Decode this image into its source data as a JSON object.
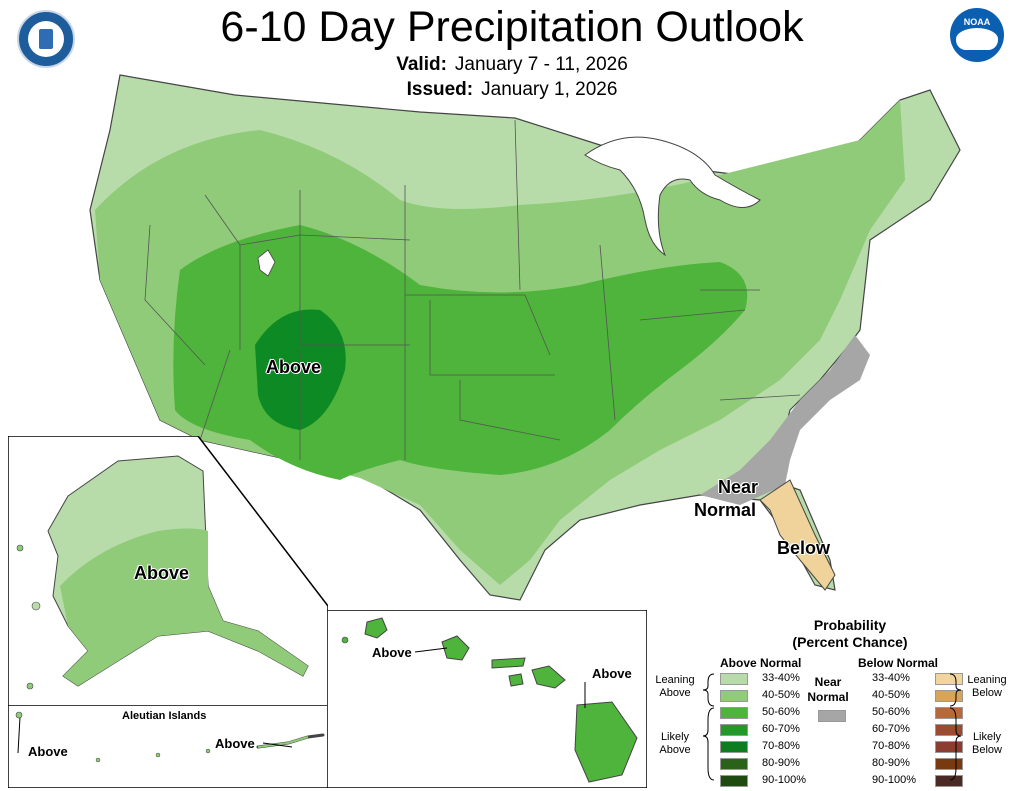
{
  "header": {
    "title": "6-10 Day Precipitation Outlook",
    "valid_label": "Valid:",
    "valid_value": "January 7 - 11, 2026",
    "issued_label": "Issued:",
    "issued_value": "January 1, 2026"
  },
  "map_labels": {
    "conus_above": "Above",
    "near_normal_1": "Near",
    "near_normal_2": "Normal",
    "conus_below": "Below",
    "alaska_above": "Above",
    "aleutian_title": "Aleutian Islands",
    "aleutian_above_west": "Above",
    "aleutian_above_east": "Above",
    "hawaii_above_west": "Above",
    "hawaii_above_east": "Above"
  },
  "legend": {
    "title_1": "Probability",
    "title_2": "(Percent Chance)",
    "above_header": "Above Normal",
    "below_header": "Below Normal",
    "near_1": "Near",
    "near_2": "Normal",
    "near_color": "#a6a6a6",
    "leaning_above": "Leaning Above",
    "likely_above": "Likely Above",
    "leaning_below": "Leaning Below",
    "likely_below": "Likely Below",
    "above": [
      {
        "label": "33-40%",
        "color": "#b7dcaa"
      },
      {
        "label": "40-50%",
        "color": "#8fcb78"
      },
      {
        "label": "50-60%",
        "color": "#4fb43b"
      },
      {
        "label": "60-70%",
        "color": "#229a27"
      },
      {
        "label": "70-80%",
        "color": "#0e7d1f"
      },
      {
        "label": "80-90%",
        "color": "#2a6219"
      },
      {
        "label": "90-100%",
        "color": "#1f4a10"
      }
    ],
    "below": [
      {
        "label": "33-40%",
        "color": "#f2d59a"
      },
      {
        "label": "40-50%",
        "color": "#d8a458"
      },
      {
        "label": "50-60%",
        "color": "#b8683b"
      },
      {
        "label": "60-70%",
        "color": "#9c4a32"
      },
      {
        "label": "70-80%",
        "color": "#8b3d30"
      },
      {
        "label": "80-90%",
        "color": "#7a3a0f"
      },
      {
        "label": "90-100%",
        "color": "#4a2a22"
      }
    ]
  }
}
